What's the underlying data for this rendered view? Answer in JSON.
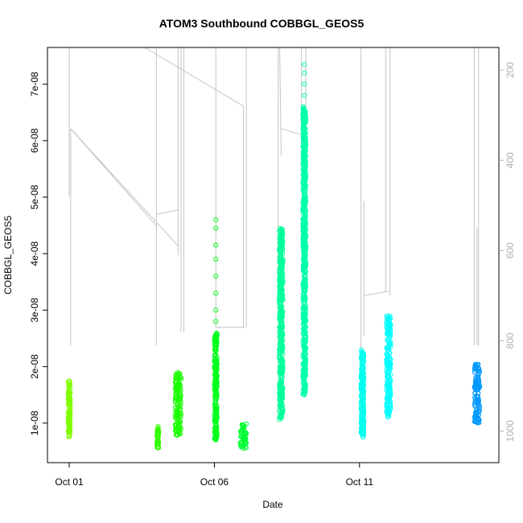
{
  "chart_data": {
    "type": "scatter",
    "title": "ATOM3 Southbound COBBGL_GEOS5",
    "xlabel": "Date",
    "ylabel": "COBBGL_GEOS5",
    "x_tick_labels": [
      "Oct 01",
      "Oct 06",
      "Oct 11"
    ],
    "x_ticks_day": [
      1,
      6,
      11
    ],
    "xlim_day": [
      0.25,
      15.8
    ],
    "ylim": [
      3e-09,
      7.65e-08
    ],
    "y_ticks": [
      1e-08,
      2e-08,
      3e-08,
      4e-08,
      5e-08,
      6e-08,
      7e-08
    ],
    "y_tick_labels": [
      "1e-08",
      "2e-08",
      "3e-08",
      "4e-08",
      "5e-08",
      "6e-08",
      "7e-08"
    ],
    "right_axis": {
      "label": "",
      "reversed": true,
      "ylim": [
        1070,
        150
      ],
      "ticks": [
        200,
        400,
        600,
        800,
        1000
      ],
      "tick_labels": [
        "200",
        "400",
        "600",
        "800",
        "1000"
      ],
      "color": "#b0b0b0"
    },
    "grid": false,
    "legend": "none",
    "clusters": [
      {
        "day": 1.0,
        "width": 0.07,
        "min": 7.5e-09,
        "max": 1.75e-08,
        "color": "#80ff00"
      },
      {
        "day": 4.05,
        "width": 0.06,
        "min": 5.5e-09,
        "max": 9.5e-09,
        "color": "#33ff00"
      },
      {
        "day": 4.75,
        "width": 0.2,
        "min": 7.8e-09,
        "max": 1.9e-08,
        "color": "#1aff00"
      },
      {
        "day": 6.05,
        "width": 0.09,
        "min": 7e-09,
        "max": 2.6e-08,
        "color": "#00ff1a",
        "outliers": [
          2.8e-08,
          3e-08,
          3.3e-08,
          3.6e-08,
          3.9e-08,
          4.15e-08,
          4.45e-08,
          4.6e-08
        ]
      },
      {
        "day": 7.0,
        "width": 0.22,
        "min": 5.5e-09,
        "max": 1e-08,
        "color": "#00ff33"
      },
      {
        "day": 8.3,
        "width": 0.12,
        "min": 1.05e-08,
        "max": 4.45e-08,
        "color": "#00ff9a"
      },
      {
        "day": 9.1,
        "width": 0.1,
        "min": 1.5e-08,
        "max": 6.6e-08,
        "color": "#00ffaa",
        "outliers": [
          6.8e-08,
          7e-08,
          7.2e-08,
          7.35e-08
        ]
      },
      {
        "day": 11.1,
        "width": 0.1,
        "min": 7.5e-09,
        "max": 2.3e-08,
        "color": "#00ffee"
      },
      {
        "day": 12.0,
        "width": 0.14,
        "min": 1.1e-08,
        "max": 2.9e-08,
        "color": "#00ffff"
      },
      {
        "day": 15.05,
        "width": 0.18,
        "min": 1e-08,
        "max": 2.05e-08,
        "color": "#0099ff"
      }
    ],
    "pressure_segments": [
      [
        [
          1.0,
          480
        ],
        [
          1.0,
          100
        ]
      ],
      [
        [
          1.05,
          810
        ],
        [
          1.05,
          330
        ]
      ],
      [
        [
          1.05,
          330
        ],
        [
          4.0,
          545
        ]
      ],
      [
        [
          4.0,
          810
        ],
        [
          4.0,
          150
        ]
      ],
      [
        [
          4.0,
          520
        ],
        [
          4.75,
          510
        ]
      ],
      [
        [
          4.75,
          560
        ],
        [
          4.75,
          150
        ]
      ],
      [
        [
          4.85,
          780
        ],
        [
          4.85,
          150
        ]
      ],
      [
        [
          4.95,
          780
        ],
        [
          4.95,
          150
        ]
      ],
      [
        [
          4.75,
          610
        ],
        [
          4.75,
          560
        ]
      ],
      [
        [
          1.05,
          330
        ],
        [
          4.75,
          590
        ]
      ],
      [
        [
          3.6,
          150
        ],
        [
          7.0,
          280
        ]
      ],
      [
        [
          7.0,
          280
        ],
        [
          7.0,
          770
        ]
      ],
      [
        [
          7.1,
          770
        ],
        [
          7.1,
          150
        ]
      ],
      [
        [
          6.05,
          770
        ],
        [
          7.05,
          770
        ]
      ],
      [
        [
          6.05,
          770
        ],
        [
          6.05,
          150
        ]
      ],
      [
        [
          8.2,
          690
        ],
        [
          8.2,
          150
        ]
      ],
      [
        [
          8.25,
          150
        ],
        [
          8.3,
          390
        ]
      ],
      [
        [
          8.3,
          330
        ],
        [
          9.1,
          345
        ]
      ],
      [
        [
          9.0,
          150
        ],
        [
          9.0,
          330
        ]
      ],
      [
        [
          9.15,
          330
        ],
        [
          9.15,
          150
        ]
      ],
      [
        [
          11.05,
          820
        ],
        [
          11.05,
          150
        ]
      ],
      [
        [
          11.15,
          790
        ],
        [
          11.15,
          490
        ]
      ],
      [
        [
          11.15,
          700
        ],
        [
          12.0,
          690
        ]
      ],
      [
        [
          11.9,
          690
        ],
        [
          11.9,
          150
        ]
      ],
      [
        [
          12.05,
          700
        ],
        [
          12.05,
          150
        ]
      ],
      [
        [
          14.95,
          810
        ],
        [
          14.95,
          150
        ]
      ],
      [
        [
          15.05,
          810
        ],
        [
          15.05,
          550
        ]
      ],
      [
        [
          15.1,
          810
        ],
        [
          15.1,
          150
        ]
      ]
    ]
  }
}
